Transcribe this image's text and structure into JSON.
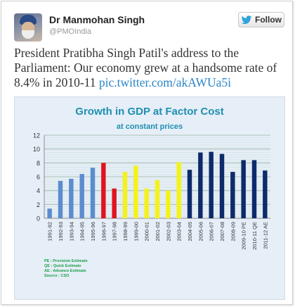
{
  "tweet": {
    "name": "Dr Manmohan Singh",
    "handle": "@PMOIndia",
    "follow_label": "Follow",
    "text": "President Pratibha Singh Patil's address to the Parliament: Our economy grew at a handsome rate of 8.4% in 2010-11",
    "link": "pic.twitter.com/akAWUa5i"
  },
  "colors": {
    "link": "#2a86c8",
    "title": "#1f8fb0",
    "blue": "#5b8ccf",
    "red": "#e0141e",
    "yellow": "#f4f21c",
    "navy": "#0d2a6b",
    "notes": "#1aa04a"
  },
  "icons": {
    "follow": "twitter-bird-icon"
  },
  "chart_data": {
    "type": "bar",
    "title": "Growth in GDP at Factor Cost",
    "subtitle": "at constant prices",
    "categories": [
      "1991-92",
      "1992-93",
      "1993-94",
      "1994-95",
      "1995-96",
      "1996-97",
      "1997-98",
      "1998-99",
      "1999-00",
      "2000-01",
      "2001-02",
      "2002-03",
      "2003-04",
      "2004-05",
      "2005-06",
      "2006-07",
      "2007-08",
      "2008-09",
      "2009-10 PE",
      "2010-11 QE",
      "2011-12 AE"
    ],
    "values": [
      1.4,
      5.4,
      5.7,
      6.4,
      7.3,
      8.0,
      4.3,
      6.7,
      7.6,
      4.3,
      5.5,
      4.0,
      8.1,
      7.0,
      9.5,
      9.6,
      9.3,
      6.7,
      8.4,
      8.4,
      6.9
    ],
    "bar_colors": [
      "#5b8ccf",
      "#5b8ccf",
      "#5b8ccf",
      "#5b8ccf",
      "#5b8ccf",
      "#e0141e",
      "#e0141e",
      "#f4f21c",
      "#f4f21c",
      "#f4f21c",
      "#f4f21c",
      "#f4f21c",
      "#f4f21c",
      "#0d2a6b",
      "#0d2a6b",
      "#0d2a6b",
      "#0d2a6b",
      "#0d2a6b",
      "#0d2a6b",
      "#0d2a6b",
      "#0d2a6b"
    ],
    "yticks": [
      0,
      2,
      4,
      6,
      8,
      10,
      12
    ],
    "ylim": [
      0,
      12
    ],
    "grid": true,
    "legend_notes": [
      "PE : Provision Estimate",
      "QE : Quick Estimate",
      "AE : Advance Estimate",
      "Source : CSO"
    ]
  }
}
